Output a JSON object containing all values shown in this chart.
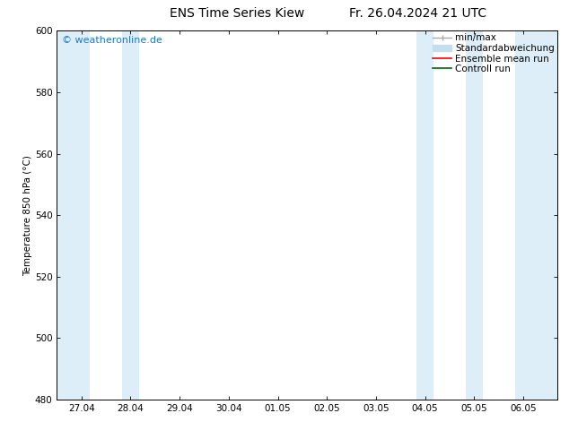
{
  "title_left": "ENS Time Series Kiew",
  "title_right": "Fr. 26.04.2024 21 UTC",
  "ylabel": "Temperature 850 hPa (°C)",
  "ylim": [
    480,
    600
  ],
  "yticks": [
    480,
    500,
    520,
    540,
    560,
    580,
    600
  ],
  "background_color": "#ffffff",
  "plot_bg_color": "#ffffff",
  "watermark_text": "© weatheronline.de",
  "watermark_color": "#1e7bc4",
  "x_tick_labels": [
    "27.04",
    "28.04",
    "29.04",
    "30.04",
    "01.05",
    "02.05",
    "03.05",
    "04.05",
    "05.05",
    "06.05"
  ],
  "x_tick_positions": [
    0,
    1,
    2,
    3,
    4,
    5,
    6,
    7,
    8,
    9
  ],
  "xlim": [
    -0.5,
    9.7
  ],
  "shaded_bands": [
    {
      "x_start": -0.5,
      "x_end": 0.17,
      "color": "#ddeef8"
    },
    {
      "x_start": 0.83,
      "x_end": 1.17,
      "color": "#ddeef8"
    },
    {
      "x_start": 6.83,
      "x_end": 7.17,
      "color": "#ddeef8"
    },
    {
      "x_start": 7.83,
      "x_end": 8.17,
      "color": "#ddeef8"
    },
    {
      "x_start": 8.83,
      "x_end": 9.7,
      "color": "#ddeef8"
    }
  ],
  "legend_minmax_color": "#aaaaaa",
  "legend_std_color": "#c5ddf0",
  "legend_ens_color": "#ff0000",
  "legend_ctrl_color": "#006600",
  "font_size_title": 10,
  "font_size_axis": 7.5,
  "font_size_legend": 7.5,
  "font_size_watermark": 8,
  "tick_color": "#000000",
  "spine_color": "#000000"
}
